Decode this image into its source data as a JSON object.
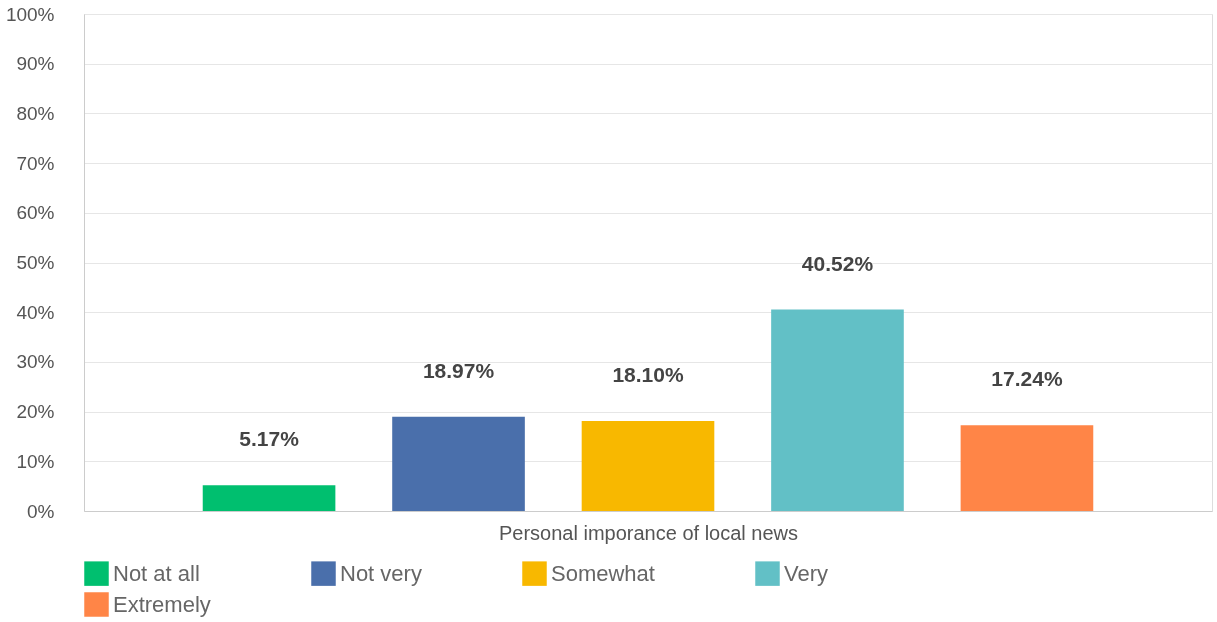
{
  "chart_data": {
    "type": "bar",
    "categories": [
      null
    ],
    "xlabel": "Personal imporance of local news",
    "series": [
      {
        "name": "Not at all",
        "color": "#00bf6f",
        "values": [
          5.17
        ],
        "value_labels": [
          "5.17%"
        ]
      },
      {
        "name": "Not very",
        "color": "#4a6fab",
        "values": [
          18.97
        ],
        "value_labels": [
          "18.97%"
        ]
      },
      {
        "name": "Somewhat",
        "color": "#f8b800",
        "values": [
          18.1
        ],
        "value_labels": [
          "18.10%"
        ]
      },
      {
        "name": "Very",
        "color": "#62c0c6",
        "values": [
          40.52
        ],
        "value_labels": [
          "40.52%"
        ]
      },
      {
        "name": "Extremely",
        "color": "#ff8547",
        "values": [
          17.24
        ],
        "value_labels": [
          "17.24%"
        ]
      }
    ],
    "ylim": [
      0,
      100
    ],
    "yticks": [
      {
        "value": 0,
        "label": "0%"
      },
      {
        "value": 10,
        "label": "10%"
      },
      {
        "value": 20,
        "label": "20%"
      },
      {
        "value": 30,
        "label": "30%"
      },
      {
        "value": 40,
        "label": "40%"
      },
      {
        "value": 50,
        "label": "50%"
      },
      {
        "value": 60,
        "label": "60%"
      },
      {
        "value": 70,
        "label": "70%"
      },
      {
        "value": 80,
        "label": "80%"
      },
      {
        "value": 90,
        "label": "90%"
      },
      {
        "value": 100,
        "label": "100%"
      }
    ],
    "grid": "y",
    "legend": "bottom"
  }
}
